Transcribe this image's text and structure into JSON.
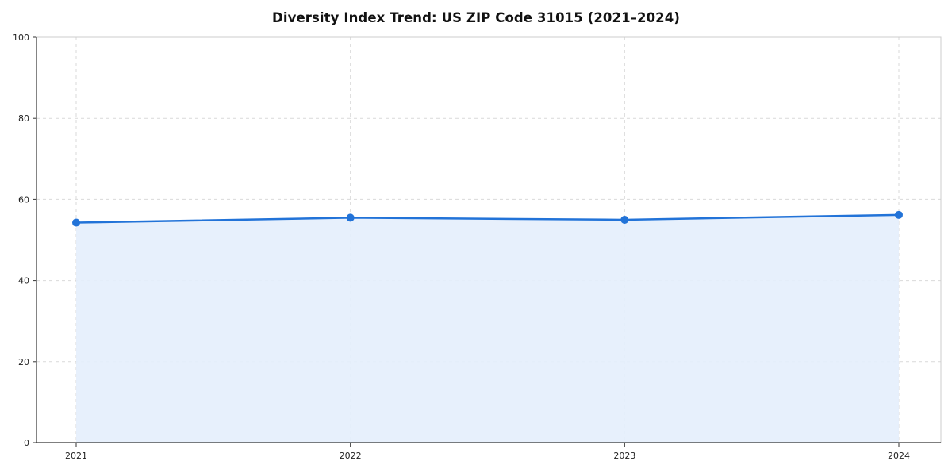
{
  "chart_data": {
    "type": "line",
    "title": "Diversity Index Trend: US ZIP Code 31015 (2021–2024)",
    "xlabel": "",
    "ylabel": "",
    "x": [
      2021,
      2022,
      2023,
      2024
    ],
    "series": [
      {
        "name": "Diversity Index",
        "values": [
          54.3,
          55.5,
          55.0,
          56.2
        ]
      }
    ],
    "ylim": [
      0,
      100
    ],
    "yticks": [
      0,
      20,
      40,
      60,
      80,
      100
    ],
    "xticks": [
      "2021",
      "2022",
      "2023",
      "2024"
    ],
    "grid": "dashed",
    "legend": "none",
    "style": {
      "line_color": "#2273d8",
      "marker_color": "#2273d8",
      "area_fill_color": "#e4eefc",
      "grid_color": "#d9d9d9",
      "spine_color": "#333333",
      "box_color": "#cccccc",
      "background": "#ffffff"
    }
  }
}
